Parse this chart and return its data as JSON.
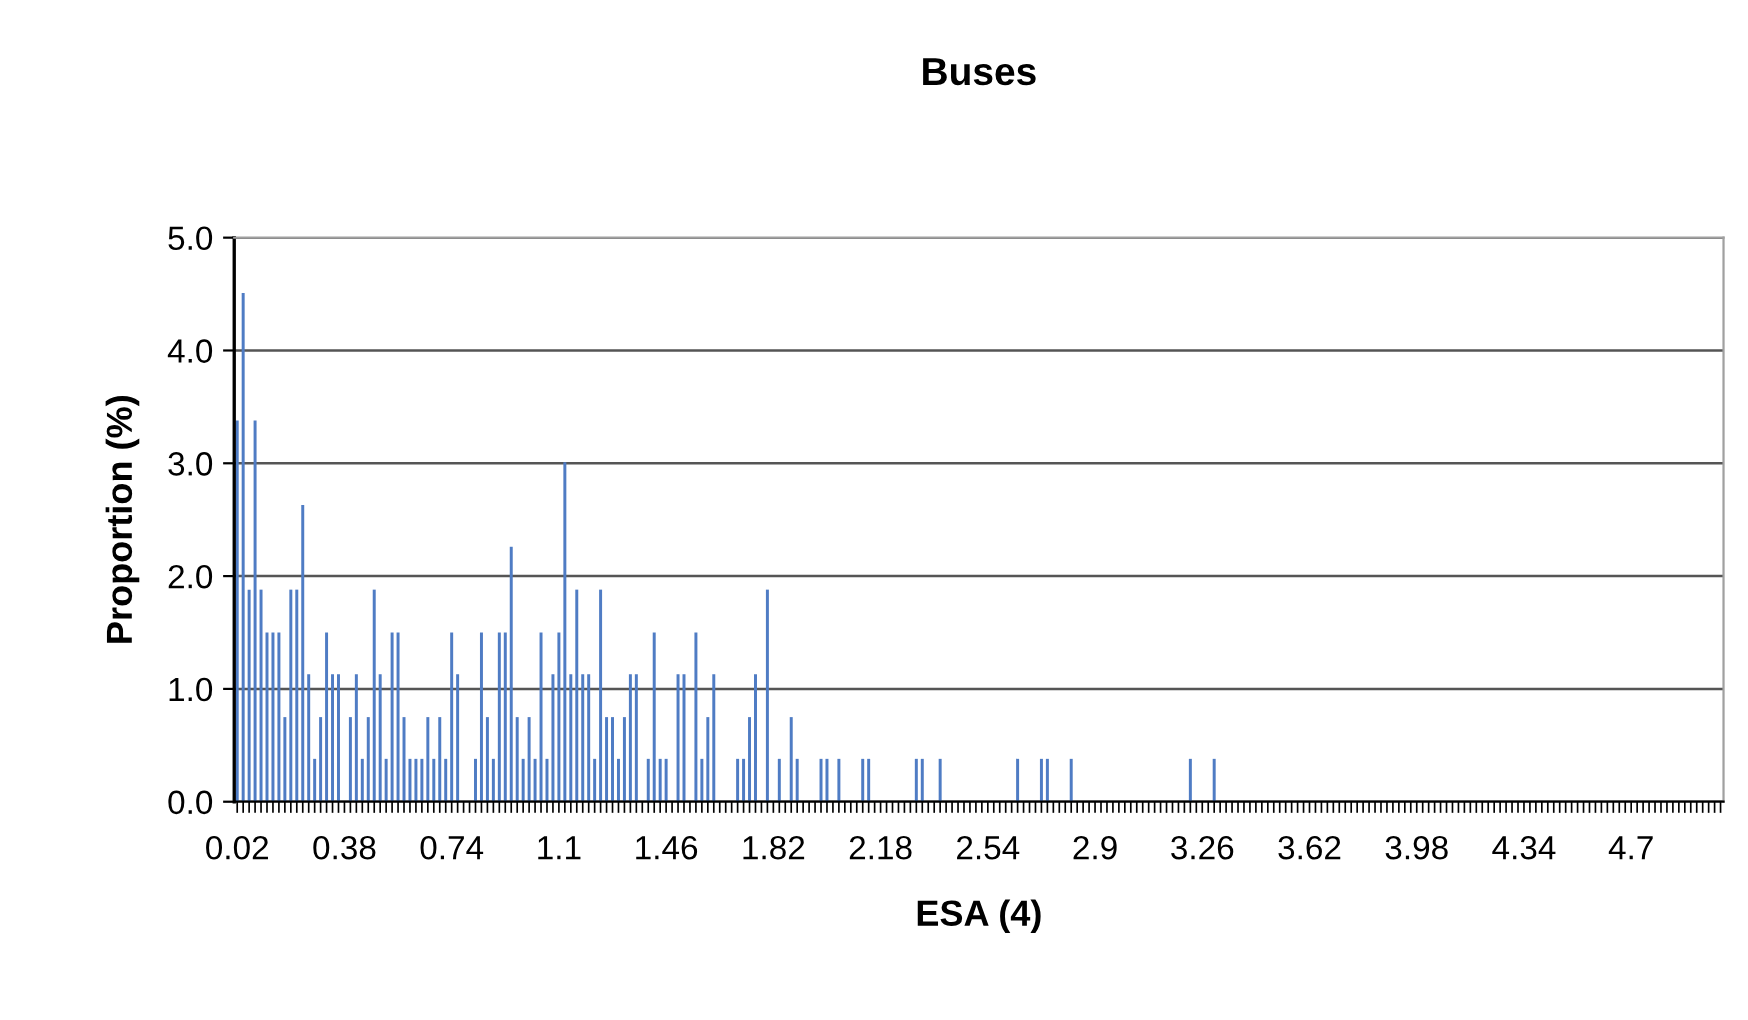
{
  "chart_data": {
    "type": "bar",
    "title": "Buses",
    "xlabel": "ESA (4)",
    "ylabel": "Proportion (%)",
    "color": "#4f7cc4",
    "grid": "y",
    "ylim": [
      0,
      5
    ],
    "yticks": [
      {
        "value": 0,
        "label": "0.0"
      },
      {
        "value": 1,
        "label": "1.0"
      },
      {
        "value": 2,
        "label": "2.0"
      },
      {
        "value": 3,
        "label": "3.0"
      },
      {
        "value": 4,
        "label": "4.0"
      },
      {
        "value": 5,
        "label": "5.0"
      }
    ],
    "categories": [
      "0.02",
      null,
      null,
      null,
      null,
      null,
      null,
      null,
      null,
      null,
      null,
      null,
      null,
      null,
      null,
      null,
      null,
      null,
      "0.38",
      null,
      null,
      null,
      null,
      null,
      null,
      null,
      null,
      null,
      null,
      null,
      null,
      null,
      null,
      null,
      null,
      null,
      "0.74",
      null,
      null,
      null,
      null,
      null,
      null,
      null,
      null,
      null,
      null,
      null,
      null,
      null,
      null,
      null,
      null,
      null,
      "1.1",
      null,
      null,
      null,
      null,
      null,
      null,
      null,
      null,
      null,
      null,
      null,
      null,
      null,
      null,
      null,
      null,
      null,
      "1.46",
      null,
      null,
      null,
      null,
      null,
      null,
      null,
      null,
      null,
      null,
      null,
      null,
      null,
      null,
      null,
      null,
      null,
      "1.82",
      null,
      null,
      null,
      null,
      null,
      null,
      null,
      null,
      null,
      null,
      null,
      null,
      null,
      null,
      null,
      null,
      null,
      "2.18",
      null,
      null,
      null,
      null,
      null,
      null,
      null,
      null,
      null,
      null,
      null,
      null,
      null,
      null,
      null,
      null,
      null,
      "2.54",
      null,
      null,
      null,
      null,
      null,
      null,
      null,
      null,
      null,
      null,
      null,
      null,
      null,
      null,
      null,
      null,
      null,
      "2.9",
      null,
      null,
      null,
      null,
      null,
      null,
      null,
      null,
      null,
      null,
      null,
      null,
      null,
      null,
      null,
      null,
      null,
      "3.26",
      null,
      null,
      null,
      null,
      null,
      null,
      null,
      null,
      null,
      null,
      null,
      null,
      null,
      null,
      null,
      null,
      null,
      "3.62",
      null,
      null,
      null,
      null,
      null,
      null,
      null,
      null,
      null,
      null,
      null,
      null,
      null,
      null,
      null,
      null,
      null,
      "3.98",
      null,
      null,
      null,
      null,
      null,
      null,
      null,
      null,
      null,
      null,
      null,
      null,
      null,
      null,
      null,
      null,
      null,
      "4.34",
      null,
      null,
      null,
      null,
      null,
      null,
      null,
      null,
      null,
      null,
      null,
      null,
      null,
      null,
      null,
      null,
      null,
      "4.7",
      null,
      null,
      null,
      null,
      null,
      null,
      null,
      null,
      null,
      null,
      null,
      null,
      null,
      null,
      null
    ],
    "values": [
      3.38,
      4.51,
      1.88,
      3.38,
      1.88,
      1.5,
      1.5,
      1.5,
      0.75,
      1.88,
      1.88,
      2.63,
      1.13,
      0.38,
      0.75,
      1.5,
      1.13,
      1.13,
      0,
      0.75,
      1.13,
      0.38,
      0.75,
      1.88,
      1.13,
      0.38,
      1.5,
      1.5,
      0.75,
      0.38,
      0.38,
      0.38,
      0.75,
      0.38,
      0.75,
      0.38,
      1.5,
      1.13,
      0,
      0,
      0.38,
      1.5,
      0.75,
      0.38,
      1.5,
      1.5,
      2.26,
      0.75,
      0.38,
      0.75,
      0.38,
      1.5,
      0.38,
      1.13,
      1.5,
      3.01,
      1.13,
      1.88,
      1.13,
      1.13,
      0.38,
      1.88,
      0.75,
      0.75,
      0.38,
      0.75,
      1.13,
      1.13,
      0,
      0.38,
      1.5,
      0.38,
      0.38,
      0,
      1.13,
      1.13,
      0,
      1.5,
      0.38,
      0.75,
      1.13,
      0,
      0,
      0,
      0.38,
      0.38,
      0.75,
      1.13,
      0,
      1.88,
      0,
      0.38,
      0,
      0.75,
      0.38,
      0,
      0,
      0,
      0.38,
      0.38,
      0,
      0.38,
      0,
      0,
      0,
      0.38,
      0.38,
      0,
      0,
      0,
      0,
      0,
      0,
      0,
      0.38,
      0.38,
      0,
      0,
      0.38,
      0,
      0,
      0,
      0,
      0,
      0,
      0,
      0,
      0,
      0,
      0,
      0,
      0.38,
      0,
      0,
      0,
      0.38,
      0.38,
      0,
      0,
      0,
      0.38,
      0,
      0,
      0,
      0,
      0,
      0,
      0,
      0,
      0,
      0,
      0,
      0,
      0,
      0,
      0,
      0,
      0,
      0,
      0,
      0.38,
      0,
      0,
      0,
      0.38,
      0,
      0,
      0,
      0,
      0,
      0,
      0,
      0,
      0,
      0,
      0,
      0,
      0,
      0,
      0,
      0,
      0,
      0,
      0,
      0,
      0,
      0,
      0,
      0,
      0,
      0,
      0,
      0,
      0,
      0,
      0,
      0,
      0,
      0,
      0,
      0,
      0,
      0,
      0,
      0,
      0,
      0,
      0,
      0,
      0,
      0,
      0,
      0,
      0,
      0,
      0,
      0,
      0,
      0,
      0,
      0,
      0,
      0,
      0,
      0,
      0,
      0,
      0,
      0,
      0,
      0,
      0,
      0,
      0,
      0,
      0,
      0,
      0,
      0,
      0,
      0,
      0,
      0,
      0,
      0,
      0,
      0,
      0,
      0,
      0
    ]
  }
}
